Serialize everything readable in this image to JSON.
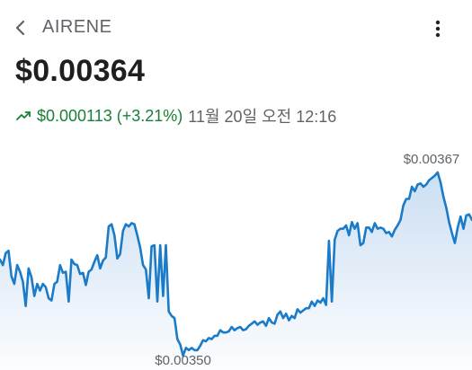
{
  "header": {
    "back_icon": "chevron-left-icon",
    "title": "AIRENE",
    "menu_icon": "more-vertical-icon"
  },
  "quote": {
    "price": "$0.00364",
    "trend_icon": "trending-up-icon",
    "change": "$0.000113 (+3.21%)",
    "timestamp": "11월 20일 오전 12:16",
    "positive_color": "#188038"
  },
  "chart_data": {
    "type": "area",
    "title": "",
    "xlabel": "",
    "ylabel": "",
    "line_color": "#1a7bc9",
    "fill_color": "#c9ddf2",
    "ylim": [
      0.00349,
      0.003695
    ],
    "high_label": "$0.00367",
    "low_label": "$0.00350",
    "high_value": 0.00367,
    "low_value": 0.0035,
    "values": [
      0.00359,
      0.003585,
      0.003596,
      0.003598,
      0.003575,
      0.003568,
      0.003585,
      0.003579,
      0.00357,
      0.003548,
      0.003582,
      0.003574,
      0.003557,
      0.003568,
      0.003562,
      0.003568,
      0.003565,
      0.003555,
      0.003553,
      0.003568,
      0.00357,
      0.003585,
      0.003578,
      0.003579,
      0.003552,
      0.00359,
      0.003586,
      0.003585,
      0.003577,
      0.003578,
      0.003567,
      0.003579,
      0.003581,
      0.003588,
      0.003594,
      0.003582,
      0.003589,
      0.003592,
      0.00362,
      0.003622,
      0.003612,
      0.003591,
      0.003595,
      0.003616,
      0.003622,
      0.00362,
      0.003623,
      0.003622,
      0.003612,
      0.003601,
      0.003585,
      0.003581,
      0.003555,
      0.003602,
      0.003603,
      0.003552,
      0.003603,
      0.003557,
      0.003603,
      0.003543,
      0.003539,
      0.003537,
      0.003518,
      0.003513,
      0.003503,
      0.00351,
      0.003508,
      0.00351,
      0.003508,
      0.003508,
      0.003512,
      0.003517,
      0.003516,
      0.003519,
      0.003518,
      0.003521,
      0.003521,
      0.003526,
      0.003524,
      0.003524,
      0.003525,
      0.003529,
      0.003526,
      0.003528,
      0.003529,
      0.003526,
      0.003527,
      0.00353,
      0.003532,
      0.003534,
      0.003531,
      0.003533,
      0.003534,
      0.00353,
      0.003537,
      0.003533,
      0.003532,
      0.00354,
      0.003543,
      0.003537,
      0.003541,
      0.003535,
      0.003539,
      0.003537,
      0.003545,
      0.003542,
      0.003544,
      0.003546,
      0.003546,
      0.003552,
      0.003548,
      0.003553,
      0.003551,
      0.003555,
      0.003549,
      0.003607,
      0.003552,
      0.003608,
      0.003616,
      0.003618,
      0.003618,
      0.003621,
      0.003612,
      0.003624,
      0.003618,
      0.003623,
      0.003603,
      0.003605,
      0.003619,
      0.003619,
      0.003615,
      0.003623,
      0.003618,
      0.003619,
      0.003618,
      0.003614,
      0.003615,
      0.003611,
      0.003617,
      0.003621,
      0.003626,
      0.003639,
      0.003645,
      0.003645,
      0.003656,
      0.003652,
      0.003658,
      0.003659,
      0.003656,
      0.003658,
      0.003662,
      0.003664,
      0.003666,
      0.003669,
      0.00366,
      0.003647,
      0.003637,
      0.003624,
      0.003614,
      0.003605,
      0.003619,
      0.003629,
      0.003618,
      0.00363,
      0.003631,
      0.003626
    ]
  }
}
